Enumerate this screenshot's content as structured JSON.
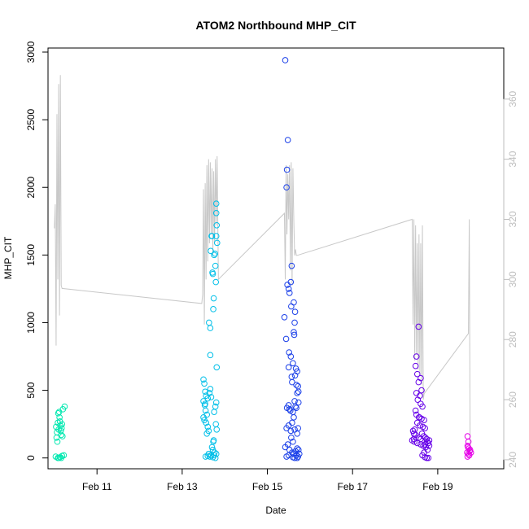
{
  "chart_data": {
    "type": "scatter",
    "title": "ATOM2 Northbound MHP_CIT",
    "xlabel": "Date",
    "ylabel": "MHP_CIT",
    "x_unit": "day (February)",
    "xlim": [
      9.85,
      20.55
    ],
    "ylim": [
      -80,
      3030
    ],
    "y2lim": [
      237,
      377
    ],
    "x_ticks": [
      {
        "value": 11,
        "label": "Feb 11"
      },
      {
        "value": 13,
        "label": "Feb 13"
      },
      {
        "value": 15,
        "label": "Feb 15"
      },
      {
        "value": 17,
        "label": "Feb 17"
      },
      {
        "value": 19,
        "label": "Feb 19"
      }
    ],
    "y_ticks": [
      0,
      500,
      1000,
      1500,
      2000,
      2500,
      3000
    ],
    "y2_ticks": [
      240,
      260,
      280,
      300,
      320,
      340,
      360
    ],
    "grid": false,
    "legend": "none",
    "colors": {
      "axis": "#000000",
      "secondary_axis": "#bebebe",
      "secondary_line": "#c8c8c8"
    },
    "series": [
      {
        "color": "#00e8b0",
        "points": [
          [
            10.04,
            230
          ],
          [
            10.06,
            190
          ],
          [
            10.08,
            260
          ],
          [
            10.1,
            210
          ],
          [
            10.12,
            300
          ],
          [
            10.14,
            240
          ],
          [
            10.16,
            170
          ],
          [
            10.18,
            250
          ],
          [
            10.05,
            150
          ],
          [
            10.09,
            330
          ],
          [
            10.13,
            270
          ],
          [
            10.17,
            220
          ],
          [
            10.2,
            360
          ],
          [
            10.24,
            380
          ],
          [
            10.11,
            340
          ],
          [
            10.15,
            200
          ],
          [
            10.19,
            160
          ],
          [
            10.07,
            120
          ],
          [
            10.03,
            10
          ],
          [
            10.08,
            0
          ],
          [
            10.13,
            5
          ],
          [
            10.18,
            15
          ],
          [
            10.22,
            20
          ],
          [
            10.1,
            0
          ],
          [
            10.16,
            0
          ]
        ]
      },
      {
        "color": "#00bfe8",
        "points": [
          [
            13.5,
            580
          ],
          [
            13.52,
            550
          ],
          [
            13.54,
            490
          ],
          [
            13.56,
            460
          ],
          [
            13.5,
            420
          ],
          [
            13.53,
            390
          ],
          [
            13.55,
            350
          ],
          [
            13.58,
            320
          ],
          [
            13.5,
            300
          ],
          [
            13.52,
            280
          ],
          [
            13.56,
            260
          ],
          [
            13.6,
            230
          ],
          [
            13.62,
            200
          ],
          [
            13.58,
            180
          ],
          [
            13.54,
            400
          ],
          [
            13.6,
            440
          ],
          [
            13.64,
            480
          ],
          [
            13.66,
            510
          ],
          [
            13.68,
            450
          ],
          [
            13.63,
            1000
          ],
          [
            13.66,
            960
          ],
          [
            13.67,
            1530
          ],
          [
            13.69,
            1640
          ],
          [
            13.7,
            1640
          ],
          [
            13.71,
            1370
          ],
          [
            13.72,
            1360
          ],
          [
            13.74,
            1180
          ],
          [
            13.73,
            1100
          ],
          [
            13.66,
            760
          ],
          [
            13.75,
            1500
          ],
          [
            13.77,
            1510
          ],
          [
            13.78,
            1420
          ],
          [
            13.79,
            1300
          ],
          [
            13.8,
            1880
          ],
          [
            13.8,
            1810
          ],
          [
            13.81,
            1720
          ],
          [
            13.8,
            1640
          ],
          [
            13.82,
            1590
          ],
          [
            13.81,
            670
          ],
          [
            13.78,
            380
          ],
          [
            13.8,
            410
          ],
          [
            13.79,
            250
          ],
          [
            13.75,
            340
          ],
          [
            13.73,
            120
          ],
          [
            13.7,
            80
          ],
          [
            13.72,
            60
          ],
          [
            13.76,
            40
          ],
          [
            13.8,
            30
          ],
          [
            13.68,
            20
          ],
          [
            13.65,
            10
          ],
          [
            13.6,
            15
          ],
          [
            13.72,
            5
          ],
          [
            13.78,
            0
          ],
          [
            13.75,
            20
          ],
          [
            13.55,
            10
          ],
          [
            13.62,
            30
          ],
          [
            13.74,
            130
          ],
          [
            13.81,
            210
          ]
        ]
      },
      {
        "color": "#1a3fe8",
        "points": [
          [
            15.42,
            2940
          ],
          [
            15.48,
            2350
          ],
          [
            15.46,
            2130
          ],
          [
            15.45,
            2000
          ],
          [
            15.57,
            1420
          ],
          [
            15.55,
            1300
          ],
          [
            15.47,
            1280
          ],
          [
            15.5,
            1250
          ],
          [
            15.52,
            1220
          ],
          [
            15.4,
            1040
          ],
          [
            15.56,
            1120
          ],
          [
            15.62,
            1150
          ],
          [
            15.65,
            1080
          ],
          [
            15.64,
            1000
          ],
          [
            15.44,
            880
          ],
          [
            15.62,
            930
          ],
          [
            15.63,
            910
          ],
          [
            15.51,
            780
          ],
          [
            15.55,
            750
          ],
          [
            15.6,
            700
          ],
          [
            15.67,
            660
          ],
          [
            15.5,
            670
          ],
          [
            15.57,
            600
          ],
          [
            15.65,
            610
          ],
          [
            15.7,
            640
          ],
          [
            15.68,
            540
          ],
          [
            15.72,
            530
          ],
          [
            15.58,
            560
          ],
          [
            15.7,
            480
          ],
          [
            15.73,
            490
          ],
          [
            15.64,
            420
          ],
          [
            15.5,
            390
          ],
          [
            15.46,
            370
          ],
          [
            15.52,
            360
          ],
          [
            15.54,
            350
          ],
          [
            15.6,
            340
          ],
          [
            15.66,
            380
          ],
          [
            15.68,
            370
          ],
          [
            15.73,
            410
          ],
          [
            15.62,
            300
          ],
          [
            15.58,
            260
          ],
          [
            15.5,
            240
          ],
          [
            15.45,
            220
          ],
          [
            15.55,
            200
          ],
          [
            15.64,
            210
          ],
          [
            15.7,
            180
          ],
          [
            15.72,
            220
          ],
          [
            15.56,
            150
          ],
          [
            15.6,
            120
          ],
          [
            15.48,
            100
          ],
          [
            15.42,
            80
          ],
          [
            15.52,
            60
          ],
          [
            15.58,
            40
          ],
          [
            15.62,
            30
          ],
          [
            15.66,
            50
          ],
          [
            15.7,
            70
          ],
          [
            15.73,
            60
          ],
          [
            15.68,
            20
          ],
          [
            15.7,
            0
          ],
          [
            15.72,
            10
          ],
          [
            15.45,
            10
          ],
          [
            15.5,
            20
          ],
          [
            15.6,
            5
          ],
          [
            15.64,
            0
          ],
          [
            15.75,
            30
          ]
        ]
      },
      {
        "color": "#6600e8",
        "points": [
          [
            18.55,
            970
          ],
          [
            18.5,
            750
          ],
          [
            18.48,
            680
          ],
          [
            18.52,
            620
          ],
          [
            18.6,
            590
          ],
          [
            18.55,
            560
          ],
          [
            18.62,
            500
          ],
          [
            18.5,
            480
          ],
          [
            18.58,
            460
          ],
          [
            18.53,
            430
          ],
          [
            18.6,
            400
          ],
          [
            18.64,
            380
          ],
          [
            18.48,
            350
          ],
          [
            18.5,
            320
          ],
          [
            18.56,
            300
          ],
          [
            18.62,
            290
          ],
          [
            18.68,
            280
          ],
          [
            18.52,
            260
          ],
          [
            18.58,
            240
          ],
          [
            18.65,
            230
          ],
          [
            18.7,
            220
          ],
          [
            18.46,
            210
          ],
          [
            18.42,
            200
          ],
          [
            18.44,
            180
          ],
          [
            18.48,
            170
          ],
          [
            18.55,
            150
          ],
          [
            18.6,
            140
          ],
          [
            18.4,
            130
          ],
          [
            18.45,
            120
          ],
          [
            18.52,
            110
          ],
          [
            18.6,
            100
          ],
          [
            18.66,
            90
          ],
          [
            18.7,
            100
          ],
          [
            18.75,
            120
          ],
          [
            18.78,
            110
          ],
          [
            18.72,
            80
          ],
          [
            18.76,
            60
          ],
          [
            18.68,
            40
          ],
          [
            18.64,
            20
          ],
          [
            18.7,
            5
          ],
          [
            18.74,
            0
          ],
          [
            18.78,
            0
          ],
          [
            18.8,
            130
          ],
          [
            18.57,
            300
          ],
          [
            18.63,
            180
          ],
          [
            18.67,
            160
          ],
          [
            18.71,
            150
          ],
          [
            18.74,
            140
          ],
          [
            18.8,
            90
          ],
          [
            18.44,
            140
          ]
        ]
      },
      {
        "color": "#e600e8",
        "points": [
          [
            19.7,
            160
          ],
          [
            19.72,
            120
          ],
          [
            19.7,
            90
          ],
          [
            19.73,
            70
          ],
          [
            19.75,
            50
          ],
          [
            19.69,
            40
          ],
          [
            19.72,
            30
          ],
          [
            19.74,
            20
          ],
          [
            19.7,
            10
          ],
          [
            19.76,
            60
          ],
          [
            19.78,
            40
          ],
          [
            19.71,
            80
          ]
        ]
      }
    ],
    "secondary_series": {
      "axis": "right",
      "color": "#c8c8c8",
      "points": [
        [
          10.0,
          317
        ],
        [
          10.02,
          325
        ],
        [
          10.04,
          278
        ],
        [
          10.06,
          355
        ],
        [
          10.08,
          300
        ],
        [
          10.1,
          365
        ],
        [
          10.12,
          288
        ],
        [
          10.14,
          368
        ],
        [
          10.16,
          298
        ],
        [
          10.18,
          297
        ],
        [
          13.46,
          292
        ],
        [
          13.48,
          295
        ],
        [
          13.5,
          330
        ],
        [
          13.52,
          285
        ],
        [
          13.54,
          332
        ],
        [
          13.56,
          300
        ],
        [
          13.58,
          338
        ],
        [
          13.6,
          306
        ],
        [
          13.62,
          340
        ],
        [
          13.64,
          312
        ],
        [
          13.66,
          339
        ],
        [
          13.68,
          315
        ],
        [
          13.7,
          337
        ],
        [
          13.72,
          308
        ],
        [
          13.74,
          336
        ],
        [
          13.76,
          312
        ],
        [
          13.78,
          340
        ],
        [
          13.8,
          318
        ],
        [
          13.82,
          341
        ],
        [
          13.85,
          300
        ],
        [
          15.4,
          322
        ],
        [
          15.42,
          300
        ],
        [
          15.44,
          338
        ],
        [
          15.46,
          315
        ],
        [
          15.48,
          335
        ],
        [
          15.5,
          320
        ],
        [
          15.52,
          338
        ],
        [
          15.54,
          303
        ],
        [
          15.56,
          339
        ],
        [
          15.58,
          298
        ],
        [
          15.6,
          337
        ],
        [
          15.62,
          320
        ],
        [
          15.64,
          308
        ],
        [
          15.66,
          310
        ],
        [
          15.68,
          308
        ],
        [
          15.7,
          308
        ],
        [
          18.4,
          320
        ],
        [
          18.42,
          285
        ],
        [
          18.44,
          320
        ],
        [
          18.46,
          273
        ],
        [
          18.48,
          318
        ],
        [
          18.5,
          275
        ],
        [
          18.52,
          312
        ],
        [
          18.54,
          270
        ],
        [
          18.56,
          315
        ],
        [
          18.58,
          268
        ],
        [
          18.6,
          312
        ],
        [
          18.62,
          265
        ],
        [
          18.64,
          318
        ],
        [
          18.66,
          260
        ],
        [
          18.68,
          262
        ],
        [
          19.72,
          282
        ],
        [
          19.74,
          320
        ],
        [
          19.76,
          242
        ]
      ]
    }
  }
}
